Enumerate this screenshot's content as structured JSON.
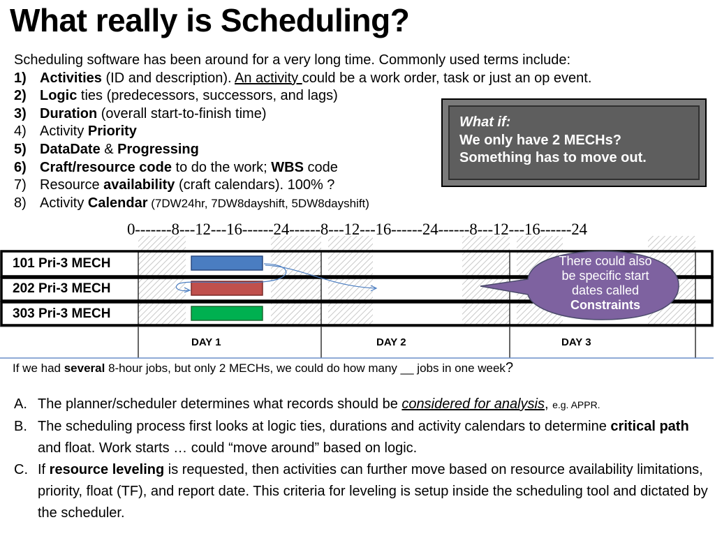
{
  "title": "What really is Scheduling?",
  "intro": {
    "lead": "Scheduling software has been around for a very long time. Commonly used terms include:",
    "items": [
      {
        "n": "1)",
        "b1": "Activities",
        "t1": " (ID and description). ",
        "u": "An activity ",
        "t2": "could be a work order, task or just an op  event."
      },
      {
        "n": "2)",
        "b1": "Logic",
        "t1": " ties (predecessors, successors, and lags)"
      },
      {
        "n": "3)",
        "b1": "Duration",
        "t1": " (overall start-to-finish time)"
      },
      {
        "n": "4)",
        "t0": "Activity ",
        "b1": "Priority"
      },
      {
        "n": "5)",
        "b1": "DataDate",
        "t1": " & ",
        "b2": "Progressing"
      },
      {
        "n": "6)",
        "b1": "Craft/resource code",
        "t1": " to do the work; ",
        "b2": "WBS",
        "t2": " code"
      },
      {
        "n": "7)",
        "t0": "Resource ",
        "b1": "availability",
        "t1": " (craft calendars). 100% ?"
      },
      {
        "n": "8)",
        "t0": "Activity ",
        "b1": "Calendar",
        "t1": " (7DW24hr, 7DW8dayshift, 5DW8dayshift)"
      }
    ]
  },
  "whatif": {
    "line1": "What if:",
    "line2": "We only have 2 MECHs?",
    "line3": "Something has to move out."
  },
  "timeline": "0-------8---12---16------24------8---12---16------24------8---12---16------24",
  "gantt": {
    "rows": [
      {
        "label": "101   Pri-3   MECH",
        "color": "#4a7dc1"
      },
      {
        "label": "202   Pri-3   MECH",
        "color": "#c0504d"
      },
      {
        "label": "303   Pri-3   MECH",
        "color": "#00b050"
      }
    ],
    "days": [
      "DAY 1",
      "DAY 2",
      "DAY 3"
    ],
    "callout": {
      "line1": "There could also",
      "line2": "be specific start",
      "line3": "dates called",
      "line4": "Constraints",
      "fill": "#7e62a0"
    }
  },
  "question": {
    "t1": "If we had ",
    "b": "several",
    "t2": " 8-hour jobs, but only 2 MECHs, we could do how many __ jobs in one week",
    "t3": "?"
  },
  "list": [
    {
      "mk": "A.",
      "t1": "The planner/scheduler determines what records should be ",
      "ui": "considered for analysis",
      "t2": ", ",
      "s": "e.g. APPR."
    },
    {
      "mk": "B.",
      "t1": "The scheduling process first looks at logic ties, durations and activity calendars to determine ",
      "b": "critical path",
      "t2": " and float. Work starts … could “move around” based on logic."
    },
    {
      "mk": "C.",
      "t1": "If ",
      "b": "resource leveling",
      "t2": " is requested, then activities can further move based on resource availability limitations, priority, float (TF), and report date. This criteria for leveling is setup inside the scheduling tool and dictated by the scheduler."
    }
  ]
}
